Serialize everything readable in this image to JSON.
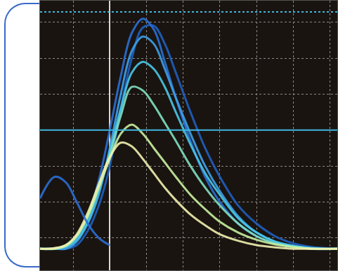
{
  "chart_data": {
    "type": "line",
    "grid": true,
    "tick_labels": false,
    "xlim": [
      -1.9,
      6.2
    ],
    "ylim": [
      -3.9,
      3.6
    ],
    "xticks": [
      -1,
      0,
      1,
      2,
      3,
      4,
      5,
      6
    ],
    "yticks": [
      -3,
      -2,
      -1,
      0,
      1,
      2,
      3
    ],
    "x": [
      -1.9,
      -1.5,
      -1.2,
      -0.9,
      -0.6,
      -0.3,
      0,
      0.3,
      0.6,
      0.9,
      1.2,
      1.5,
      1.8,
      2.2,
      2.6,
      3.0,
      3.5,
      4.0,
      4.5,
      5.0,
      5.5,
      6.2
    ],
    "series": [
      {
        "color": "#1f5fc0",
        "line_style": "solid",
        "values": [
          -3.3,
          -3.3,
          -3.3,
          -3.2,
          -2.8,
          -2.1,
          -1.0,
          0.6,
          2.0,
          2.85,
          2.9,
          2.4,
          1.6,
          0.5,
          -0.5,
          -1.3,
          -2.1,
          -2.6,
          -2.95,
          -3.15,
          -3.25,
          -3.3
        ]
      },
      {
        "color": "#2a6fd6",
        "line_style": "solid",
        "values": [
          -3.3,
          -3.3,
          -3.25,
          -3.0,
          -2.4,
          -1.4,
          0.0,
          1.5,
          2.7,
          3.1,
          2.8,
          1.9,
          0.9,
          -0.3,
          -1.3,
          -2.0,
          -2.6,
          -2.95,
          -3.15,
          -3.25,
          -3.3,
          -3.3
        ]
      },
      {
        "color": "#3fa0e8",
        "line_style": "solid",
        "values": [
          -3.3,
          -3.3,
          -3.3,
          -3.1,
          -2.6,
          -1.8,
          -0.5,
          1.0,
          2.2,
          2.6,
          2.4,
          1.7,
          0.9,
          -0.1,
          -1.0,
          -1.7,
          -2.4,
          -2.85,
          -3.1,
          -3.22,
          -3.3,
          -3.3
        ]
      },
      {
        "color": "#48c8e8",
        "line_style": "solid",
        "values": [
          -3.3,
          -3.3,
          -3.25,
          -3.05,
          -2.55,
          -1.7,
          -0.6,
          0.6,
          1.6,
          1.9,
          1.7,
          1.2,
          0.5,
          -0.4,
          -1.2,
          -1.8,
          -2.45,
          -2.85,
          -3.1,
          -3.22,
          -3.28,
          -3.3
        ]
      },
      {
        "color": "#7fe0c0",
        "line_style": "solid",
        "values": [
          -3.3,
          -3.3,
          -3.2,
          -2.95,
          -2.4,
          -1.6,
          -0.7,
          0.4,
          1.2,
          1.1,
          0.7,
          0.2,
          -0.3,
          -1.0,
          -1.6,
          -2.1,
          -2.6,
          -2.95,
          -3.15,
          -3.25,
          -3.3,
          -3.3
        ]
      },
      {
        "color": "#c8f0a0",
        "line_style": "solid",
        "values": [
          -3.3,
          -3.3,
          -3.22,
          -2.95,
          -2.4,
          -1.6,
          -0.8,
          -0.1,
          0.15,
          -0.1,
          -0.5,
          -0.9,
          -1.3,
          -1.8,
          -2.2,
          -2.55,
          -2.85,
          -3.05,
          -3.18,
          -3.25,
          -3.3,
          -3.3
        ]
      },
      {
        "color": "#f0f0b0",
        "line_style": "solid",
        "values": [
          -3.3,
          -3.28,
          -3.2,
          -2.9,
          -2.3,
          -1.5,
          -0.75,
          -0.35,
          -0.45,
          -0.8,
          -1.2,
          -1.6,
          -1.95,
          -2.35,
          -2.65,
          -2.9,
          -3.08,
          -3.2,
          -3.26,
          -3.3,
          -3.3,
          -3.3
        ]
      },
      {
        "color": "#2a6fd6",
        "line_style": "solid",
        "values": [
          -1.9,
          -1.3,
          -1.45,
          -2.0,
          -2.6,
          -3.0,
          -3.2,
          null,
          null,
          null,
          null,
          null,
          null,
          null,
          null,
          null,
          null,
          null,
          null,
          null,
          null,
          null
        ]
      },
      {
        "color": "#3fb8e0",
        "line_style": "solid",
        "x": [
          -1.9,
          6.2
        ],
        "values": [
          0,
          0
        ]
      },
      {
        "color": "#3fb8e0",
        "line_style": "dot",
        "x": [
          -1.9,
          6.2
        ],
        "values": [
          3.29,
          3.29
        ]
      }
    ]
  }
}
